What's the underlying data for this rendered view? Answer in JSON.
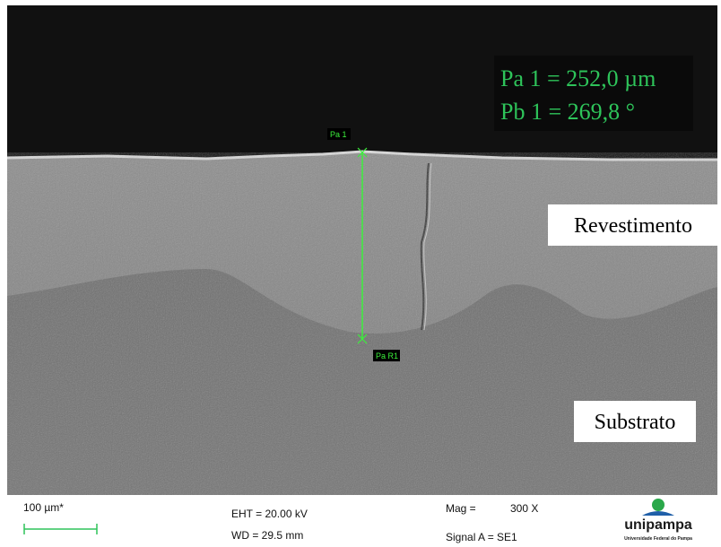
{
  "measurement": {
    "readout": [
      "Pa 1 = 252,0 µm",
      "Pb 1 = 269,8 °"
    ],
    "start_label": "Pa 1",
    "end_label": "Pa R1"
  },
  "regions": {
    "coating": "Revestimento",
    "substrate": "Substrato"
  },
  "info_bar": {
    "scale_bar": "100 µm*",
    "eht": "EHT = 20.00 kV",
    "wd": "WD = 29.5 mm",
    "mag_label": "Mag =",
    "mag_value": "300 X",
    "signal": "Signal A = SE1",
    "logo": "unipampa",
    "logo_subtitle": "Universidade Federal do Pampa"
  }
}
